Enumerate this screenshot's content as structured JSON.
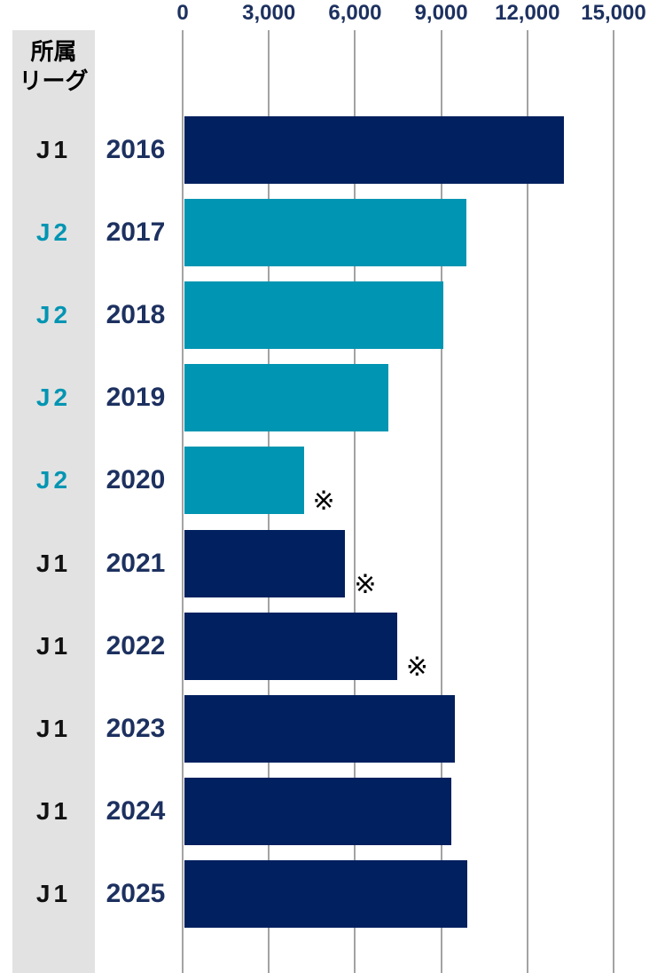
{
  "header": {
    "league_column_title_line1": "所属",
    "league_column_title_line2": "リーグ"
  },
  "axis": {
    "ticks": [
      "0",
      "3,000",
      "6,000",
      "9,000",
      "12,000",
      "15,000"
    ]
  },
  "rows": [
    {
      "league": "J1",
      "year": "2016",
      "value": 13200,
      "note": false
    },
    {
      "league": "J2",
      "year": "2017",
      "value": 9800,
      "note": false
    },
    {
      "league": "J2",
      "year": "2018",
      "value": 9000,
      "note": false
    },
    {
      "league": "J2",
      "year": "2019",
      "value": 7100,
      "note": false
    },
    {
      "league": "J2",
      "year": "2020",
      "value": 4150,
      "note": true
    },
    {
      "league": "J1",
      "year": "2021",
      "value": 5600,
      "note": true
    },
    {
      "league": "J1",
      "year": "2022",
      "value": 7400,
      "note": true
    },
    {
      "league": "J1",
      "year": "2023",
      "value": 9400,
      "note": false
    },
    {
      "league": "J1",
      "year": "2024",
      "value": 9300,
      "note": false
    },
    {
      "league": "J1",
      "year": "2025",
      "value": 9850,
      "note": false
    }
  ],
  "notes": {
    "mark": "※"
  },
  "colors": {
    "j1_bar": "#00205F",
    "j2_bar": "#0095B2",
    "j1_league_text": "#111111",
    "j2_league_text": "#0095B2",
    "year_text": "#1D3160",
    "axis_text": "#1D3160",
    "gridline": "#A3A3A3",
    "band_bg": "#E2E2E2",
    "note_mark": "#000000"
  },
  "chart_data": {
    "type": "bar",
    "orientation": "horizontal",
    "title": "",
    "xlabel": "",
    "ylabel": "所属リーグ / 年",
    "categories": [
      "2016",
      "2017",
      "2018",
      "2019",
      "2020",
      "2021",
      "2022",
      "2023",
      "2024",
      "2025"
    ],
    "league_per_category": [
      "J1",
      "J2",
      "J2",
      "J2",
      "J2",
      "J1",
      "J1",
      "J1",
      "J1",
      "J1"
    ],
    "values": [
      13200,
      9800,
      9000,
      7100,
      4150,
      5600,
      7400,
      9400,
      9300,
      9850
    ],
    "annotated_with_reference_mark": [
      "2020",
      "2021",
      "2022"
    ],
    "xlim": [
      0,
      15000
    ],
    "xticks": [
      0,
      3000,
      6000,
      9000,
      12000,
      15000
    ],
    "grid": true,
    "legend": false
  }
}
